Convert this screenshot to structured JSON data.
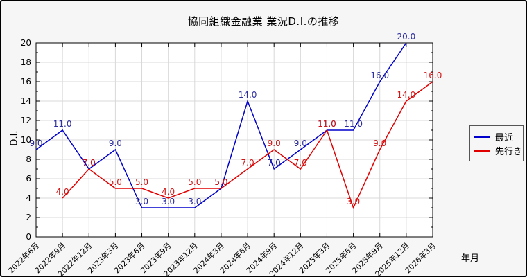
{
  "title": "協同組織金融業 業況D.I.の推移",
  "chart_data": {
    "type": "line",
    "categories": [
      "2022年6月",
      "2022年9月",
      "2022年12月",
      "2023年3月",
      "2023年6月",
      "2023年9月",
      "2023年12月",
      "2024年3月",
      "2024年6月",
      "2024年9月",
      "2024年12月",
      "2025年3月",
      "2025年6月",
      "2025年9月",
      "2025年12月",
      "2026年3月"
    ],
    "series": [
      {
        "name": "最近",
        "color": "#0000cc",
        "label_color": "#2b2b9e",
        "values": [
          9,
          11,
          7,
          9,
          3,
          3,
          3,
          5,
          14,
          7,
          9,
          11,
          11,
          16,
          20,
          null
        ]
      },
      {
        "name": "先行き",
        "color": "#e00000",
        "label_color": "#d31414",
        "values": [
          null,
          4,
          7,
          5,
          5,
          4,
          5,
          5,
          7,
          9,
          7,
          11,
          3,
          9,
          14,
          16
        ]
      }
    ],
    "title": "協同組織金融業 業況D.I.の推移",
    "xlabel": "年月",
    "ylabel": "D.I.",
    "ylim": [
      0,
      20
    ],
    "ytick_major": 2,
    "ytick_minor": 1,
    "grid": "on",
    "legend_position": "right-middle-outside",
    "data_label_decimals": 1
  },
  "colors": {
    "background": "#f6f6f6",
    "plot_background": "#ffffff",
    "grid": "#d8d8d8",
    "axis": "#000000",
    "recent_line": "#0000cc",
    "outlook_line": "#e00000"
  }
}
